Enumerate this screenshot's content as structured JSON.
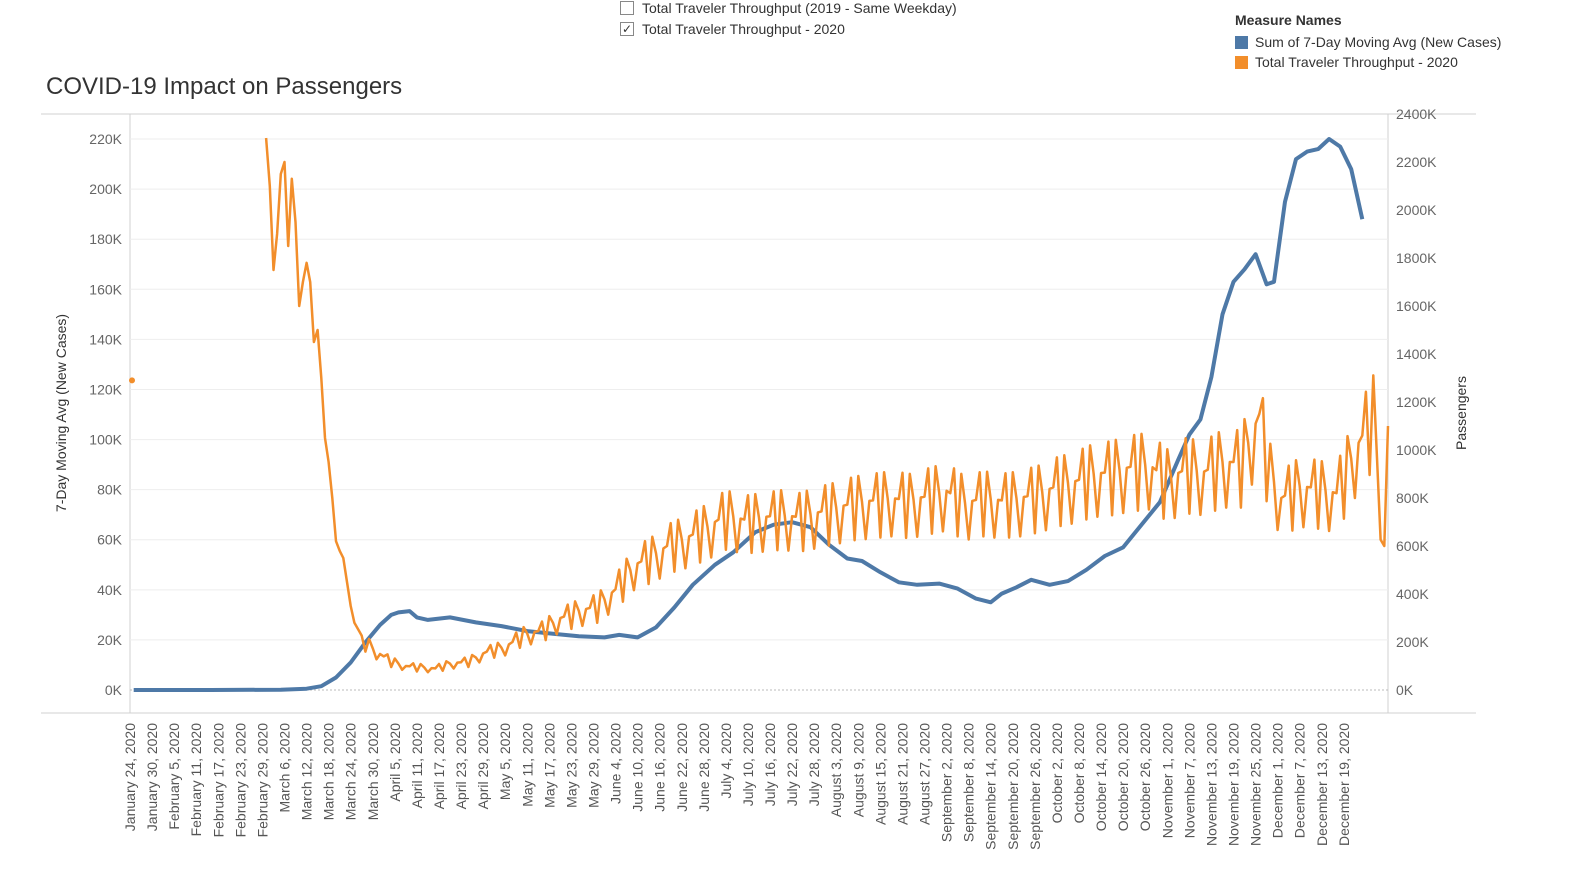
{
  "filters": [
    {
      "label": "Total Traveler Throughput (2019 - Same Weekday)",
      "checked": false
    },
    {
      "label": "Total Traveler Throughput - 2020",
      "checked": true
    }
  ],
  "legend": {
    "title": "Measure Names",
    "items": [
      {
        "label": "Sum of 7-Day Moving Avg (New Cases)",
        "color": "#4e79a7"
      },
      {
        "label": "Total Traveler Throughput - 2020",
        "color": "#f28e2b"
      }
    ]
  },
  "chart_data": {
    "type": "line",
    "title": "COVID-19 Impact on Passengers",
    "ylabel_left": "7-Day Moving Avg (New Cases)",
    "ylabel_right": "Passengers",
    "ylim_left": [
      0,
      230000
    ],
    "ylim_right": [
      0,
      2400000
    ],
    "yticks_left": [
      "0K",
      "20K",
      "40K",
      "60K",
      "80K",
      "100K",
      "120K",
      "140K",
      "160K",
      "180K",
      "200K",
      "220K"
    ],
    "yticks_right": [
      "0K",
      "200K",
      "400K",
      "600K",
      "800K",
      "1000K",
      "1200K",
      "1400K",
      "1600K",
      "1800K",
      "2000K",
      "2200K",
      "2400K"
    ],
    "xlim": [
      "2020-01-24",
      "2020-12-31"
    ],
    "x_tick_labels": [
      "January 24, 2020",
      "January 30, 2020",
      "February 5, 2020",
      "February 11, 2020",
      "February 17, 2020",
      "February 23, 2020",
      "February 29, 2020",
      "March 6, 2020",
      "March 12, 2020",
      "March 18, 2020",
      "March 24, 2020",
      "March 30, 2020",
      "April 5, 2020",
      "April 11, 2020",
      "April 17, 2020",
      "April 23, 2020",
      "April 29, 2020",
      "May 5, 2020",
      "May 11, 2020",
      "May 17, 2020",
      "May 23, 2020",
      "May 29, 2020",
      "June 4, 2020",
      "June 10, 2020",
      "June 16, 2020",
      "June 22, 2020",
      "June 28, 2020",
      "July 4, 2020",
      "July 10, 2020",
      "July 16, 2020",
      "July 22, 2020",
      "July 28, 2020",
      "August 3, 2020",
      "August 9, 2020",
      "August 15, 2020",
      "August 21, 2020",
      "August 27, 2020",
      "September 2, 2020",
      "September 8, 2020",
      "September 14, 2020",
      "September 20, 2020",
      "September 26, 2020",
      "October 2, 2020",
      "October 8, 2020",
      "October 14, 2020",
      "October 20, 2020",
      "October 26, 2020",
      "November 1, 2020",
      "November 7, 2020",
      "November 13, 2020",
      "November 19, 2020",
      "November 25, 2020",
      "December 1, 2020",
      "December 7, 2020",
      "December 13, 2020",
      "December 19, 2020"
    ],
    "grid": true,
    "legend_position": "top-right",
    "series": [
      {
        "name": "Sum of 7-Day Moving Avg (New Cases)",
        "axis": "left",
        "color": "#4e79a7",
        "x": [
          "2020-01-25",
          "2020-02-15",
          "2020-03-05",
          "2020-03-12",
          "2020-03-16",
          "2020-03-20",
          "2020-03-24",
          "2020-03-28",
          "2020-04-01",
          "2020-04-04",
          "2020-04-06",
          "2020-04-09",
          "2020-04-11",
          "2020-04-14",
          "2020-04-20",
          "2020-04-27",
          "2020-05-04",
          "2020-05-11",
          "2020-05-18",
          "2020-05-25",
          "2020-06-01",
          "2020-06-05",
          "2020-06-10",
          "2020-06-15",
          "2020-06-20",
          "2020-06-25",
          "2020-07-01",
          "2020-07-06",
          "2020-07-12",
          "2020-07-17",
          "2020-07-22",
          "2020-07-27",
          "2020-08-01",
          "2020-08-06",
          "2020-08-10",
          "2020-08-15",
          "2020-08-20",
          "2020-08-25",
          "2020-08-31",
          "2020-09-05",
          "2020-09-10",
          "2020-09-14",
          "2020-09-17",
          "2020-09-21",
          "2020-09-25",
          "2020-09-30",
          "2020-10-05",
          "2020-10-10",
          "2020-10-15",
          "2020-10-20",
          "2020-10-25",
          "2020-10-30",
          "2020-11-04",
          "2020-11-07",
          "2020-11-10",
          "2020-11-13",
          "2020-11-16",
          "2020-11-19",
          "2020-11-22",
          "2020-11-25",
          "2020-11-28",
          "2020-11-30",
          "2020-12-03",
          "2020-12-06",
          "2020-12-09",
          "2020-12-12",
          "2020-12-15",
          "2020-12-18",
          "2020-12-21",
          "2020-12-24"
        ],
        "values": [
          0,
          0,
          100,
          500,
          1500,
          5000,
          11000,
          19000,
          26000,
          30000,
          31000,
          31500,
          29000,
          28000,
          29000,
          27000,
          25500,
          23500,
          22500,
          21500,
          21000,
          22000,
          21000,
          25000,
          33000,
          42000,
          50000,
          55000,
          63000,
          66000,
          67000,
          65000,
          58000,
          52500,
          51500,
          47000,
          43000,
          42000,
          42500,
          40500,
          36500,
          35000,
          38500,
          41000,
          44000,
          42000,
          43500,
          48000,
          53500,
          57000,
          66000,
          75000,
          92000,
          102000,
          108000,
          125000,
          150000,
          163000,
          168000,
          174000,
          162000,
          163000,
          195000,
          212000,
          215000,
          216000,
          220000,
          217000,
          208000,
          188000
        ]
      },
      {
        "name": "Total Traveler Throughput - 2020",
        "axis": "right",
        "color": "#f28e2b",
        "x": [
          "2020-03-01",
          "2020-03-02",
          "2020-03-03",
          "2020-03-04",
          "2020-03-05",
          "2020-03-06",
          "2020-03-07",
          "2020-03-08",
          "2020-03-09",
          "2020-03-10",
          "2020-03-11",
          "2020-03-12",
          "2020-03-13",
          "2020-03-14",
          "2020-03-15",
          "2020-03-16",
          "2020-03-17",
          "2020-03-18",
          "2020-03-19",
          "2020-03-20",
          "2020-03-21",
          "2020-03-22",
          "2020-03-23",
          "2020-03-24",
          "2020-03-25",
          "2020-03-28",
          "2020-03-31",
          "2020-04-04",
          "2020-04-08",
          "2020-04-12",
          "2020-04-16",
          "2020-04-20",
          "2020-04-25",
          "2020-04-30",
          "2020-05-05",
          "2020-05-10",
          "2020-05-15",
          "2020-05-20",
          "2020-05-25",
          "2020-05-30",
          "2020-06-04",
          "2020-06-09",
          "2020-06-14",
          "2020-06-19",
          "2020-06-24",
          "2020-06-29",
          "2020-07-04",
          "2020-07-09",
          "2020-07-14",
          "2020-07-19",
          "2020-07-24",
          "2020-07-29",
          "2020-08-03",
          "2020-08-08",
          "2020-08-13",
          "2020-08-18",
          "2020-08-23",
          "2020-08-28",
          "2020-09-02",
          "2020-09-07",
          "2020-09-12",
          "2020-09-17",
          "2020-09-22",
          "2020-09-27",
          "2020-10-02",
          "2020-10-07",
          "2020-10-12",
          "2020-10-17",
          "2020-10-22",
          "2020-10-27",
          "2020-11-01",
          "2020-11-06",
          "2020-11-11",
          "2020-11-16",
          "2020-11-21",
          "2020-11-26",
          "2020-11-29",
          "2020-12-02",
          "2020-12-07",
          "2020-12-12",
          "2020-12-17",
          "2020-12-22",
          "2020-12-27",
          "2020-12-30",
          "2020-12-31"
        ],
        "values": [
          2300000,
          2100000,
          1750000,
          1900000,
          2150000,
          2200000,
          1850000,
          2130000,
          1950000,
          1600000,
          1700000,
          1780000,
          1700000,
          1450000,
          1500000,
          1300000,
          1050000,
          950000,
          800000,
          620000,
          580000,
          550000,
          450000,
          350000,
          280000,
          200000,
          160000,
          120000,
          100000,
          95000,
          90000,
          110000,
          120000,
          160000,
          180000,
          230000,
          250000,
          300000,
          330000,
          350000,
          420000,
          520000,
          560000,
          610000,
          640000,
          680000,
          730000,
          710000,
          720000,
          730000,
          720000,
          740000,
          760000,
          780000,
          790000,
          800000,
          790000,
          810000,
          830000,
          780000,
          800000,
          790000,
          800000,
          820000,
          850000,
          870000,
          900000,
          910000,
          930000,
          940000,
          880000,
          920000,
          910000,
          950000,
          950000,
          1150000,
          900000,
          800000,
          850000,
          840000,
          820000,
          1000000,
          1150000,
          600000,
          1100000
        ],
        "zigzag": true
      }
    ],
    "stray_point": {
      "series": "Total Traveler Throughput - 2020",
      "x": "2020-01-24",
      "value": 1290000
    }
  }
}
